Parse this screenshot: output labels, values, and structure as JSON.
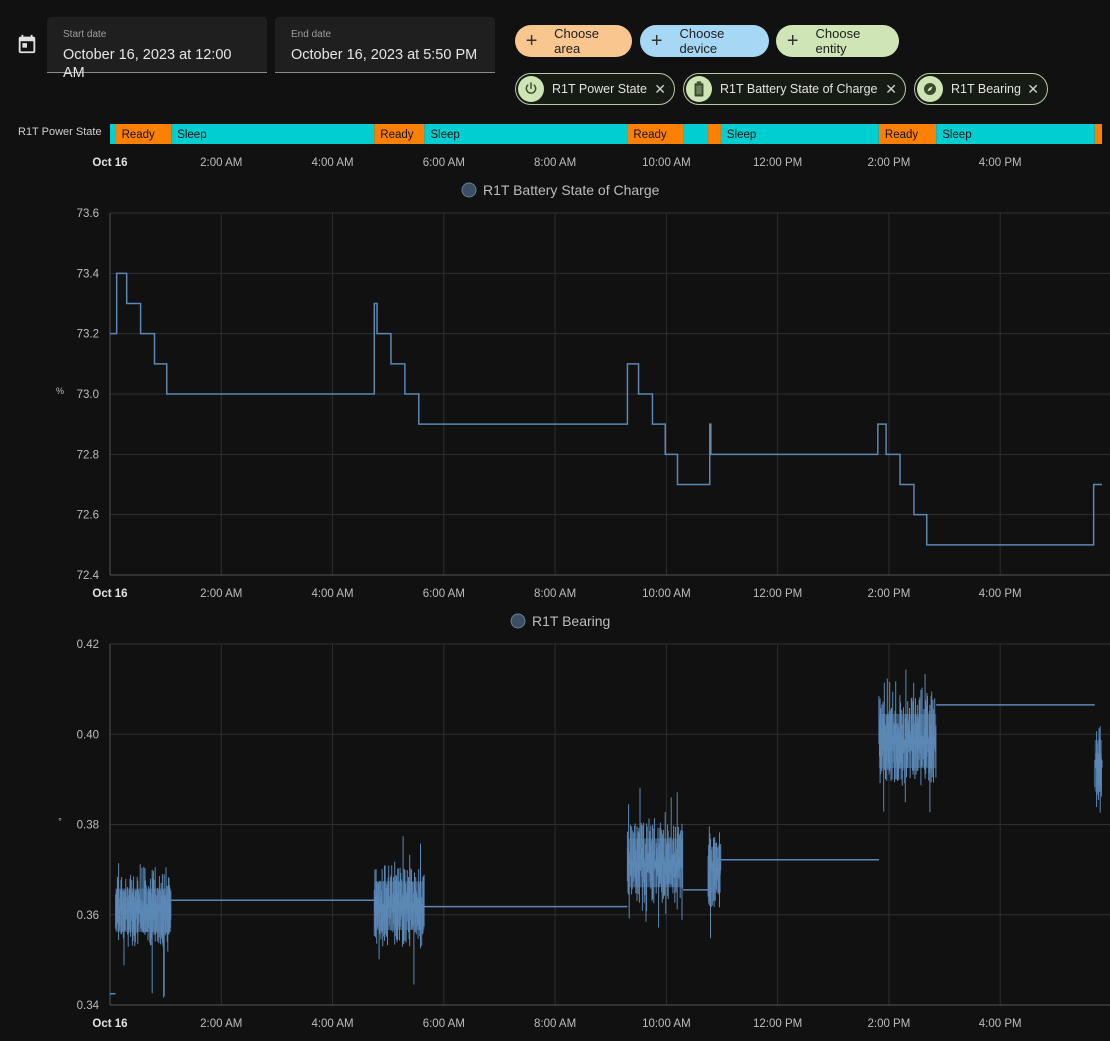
{
  "start_date": {
    "label": "Start date",
    "value": "October 16, 2023 at 12:00 AM"
  },
  "end_date": {
    "label": "End date",
    "value": "October 16, 2023 at 5:50 PM"
  },
  "add_chips": {
    "area": "Choose area",
    "device": "Choose device",
    "entity": "Choose entity"
  },
  "selected": {
    "power": "R1T Power State",
    "battery": "R1T Battery State of Charge",
    "bearing": "R1T Bearing"
  },
  "colors": {
    "ready": "#ff8000",
    "sleep": "#00ced1",
    "line": "#5b87b5",
    "area_chip": "#f9c690",
    "device_chip": "#a6d8f6",
    "entity_chip": "#cfe5b6"
  },
  "time_ticks": [
    "Oct 16",
    "2:00 AM",
    "4:00 AM",
    "6:00 AM",
    "8:00 AM",
    "10:00 AM",
    "12:00 PM",
    "2:00 PM",
    "4:00 PM"
  ],
  "timeline": {
    "label": "R1T Power State",
    "segments": [
      {
        "state": "Sleep",
        "start": 0.0,
        "end": 0.1,
        "text": ""
      },
      {
        "state": "Ready",
        "start": 0.1,
        "end": 1.1,
        "text": "Ready"
      },
      {
        "state": "Sleep",
        "start": 1.1,
        "end": 4.75,
        "text": "Sleep"
      },
      {
        "state": "Ready",
        "start": 4.75,
        "end": 5.65,
        "text": "Ready"
      },
      {
        "state": "Sleep",
        "start": 5.65,
        "end": 9.3,
        "text": "Sleep"
      },
      {
        "state": "Ready",
        "start": 9.3,
        "end": 10.3,
        "text": "Ready"
      },
      {
        "state": "Sleep",
        "start": 10.3,
        "end": 10.75,
        "text": ""
      },
      {
        "state": "Ready",
        "start": 10.75,
        "end": 10.98,
        "text": ""
      },
      {
        "state": "Sleep",
        "start": 10.98,
        "end": 13.82,
        "text": "Sleep"
      },
      {
        "state": "Ready",
        "start": 13.82,
        "end": 14.85,
        "text": "Ready"
      },
      {
        "state": "Sleep",
        "start": 14.85,
        "end": 17.7,
        "text": "Sleep"
      },
      {
        "state": "Ready",
        "start": 17.7,
        "end": 17.83,
        "text": ""
      }
    ]
  },
  "chart_data": [
    {
      "type": "line",
      "step": true,
      "legend": "R1T Battery State of Charge",
      "ylabel": "%",
      "ylim": [
        72.4,
        73.6
      ],
      "yticks": [
        "73.6",
        "73.4",
        "73.2",
        "73.0",
        "72.8",
        "72.6",
        "72.4"
      ],
      "x_unit": "hours since Oct 16 00:00",
      "xlim": [
        0,
        17.83
      ],
      "points": [
        [
          0.0,
          73.2
        ],
        [
          0.12,
          73.4
        ],
        [
          0.3,
          73.3
        ],
        [
          0.55,
          73.2
        ],
        [
          0.8,
          73.1
        ],
        [
          1.02,
          73.0
        ],
        [
          4.75,
          73.3
        ],
        [
          4.8,
          73.2
        ],
        [
          5.05,
          73.1
        ],
        [
          5.3,
          73.0
        ],
        [
          5.55,
          72.9
        ],
        [
          9.3,
          73.1
        ],
        [
          9.5,
          73.0
        ],
        [
          9.75,
          72.9
        ],
        [
          9.98,
          72.8
        ],
        [
          10.2,
          72.7
        ],
        [
          10.78,
          72.9
        ],
        [
          10.8,
          72.8
        ],
        [
          13.8,
          72.9
        ],
        [
          13.95,
          72.8
        ],
        [
          14.2,
          72.7
        ],
        [
          14.45,
          72.6
        ],
        [
          14.68,
          72.5
        ],
        [
          17.68,
          72.7
        ],
        [
          17.83,
          72.7
        ]
      ]
    },
    {
      "type": "line",
      "legend": "R1T Bearing",
      "ylabel": "°",
      "ylim": [
        0.34,
        0.42
      ],
      "yticks": [
        "0.42",
        "0.40",
        "0.38",
        "0.36",
        "0.34"
      ],
      "x_unit": "hours since Oct 16 00:00",
      "xlim": [
        0,
        17.83
      ],
      "baseline_segments": [
        [
          0.0,
          0.1,
          0.3425
        ],
        [
          1.1,
          4.75,
          0.3632
        ],
        [
          5.65,
          9.3,
          0.3618
        ],
        [
          10.3,
          10.75,
          0.3655
        ],
        [
          10.98,
          13.82,
          0.3722
        ],
        [
          14.85,
          17.7,
          0.4065
        ]
      ],
      "noise_bands": [
        {
          "start": 0.1,
          "end": 1.1,
          "low": 0.353,
          "high": 0.369,
          "min": 0.34,
          "max": 0.3715
        },
        {
          "start": 4.75,
          "end": 5.65,
          "low": 0.353,
          "high": 0.371,
          "min": 0.3405,
          "max": 0.3775
        },
        {
          "start": 9.3,
          "end": 10.3,
          "low": 0.3625,
          "high": 0.3805,
          "min": 0.3555,
          "max": 0.3895
        },
        {
          "start": 10.75,
          "end": 10.98,
          "low": 0.3615,
          "high": 0.3785,
          "min": 0.3545,
          "max": 0.3855
        },
        {
          "start": 13.82,
          "end": 14.85,
          "low": 0.3885,
          "high": 0.4085,
          "min": 0.3815,
          "max": 0.4145
        },
        {
          "start": 17.7,
          "end": 17.83,
          "low": 0.3835,
          "high": 0.4025,
          "min": 0.3805,
          "max": 0.4085
        }
      ]
    }
  ]
}
